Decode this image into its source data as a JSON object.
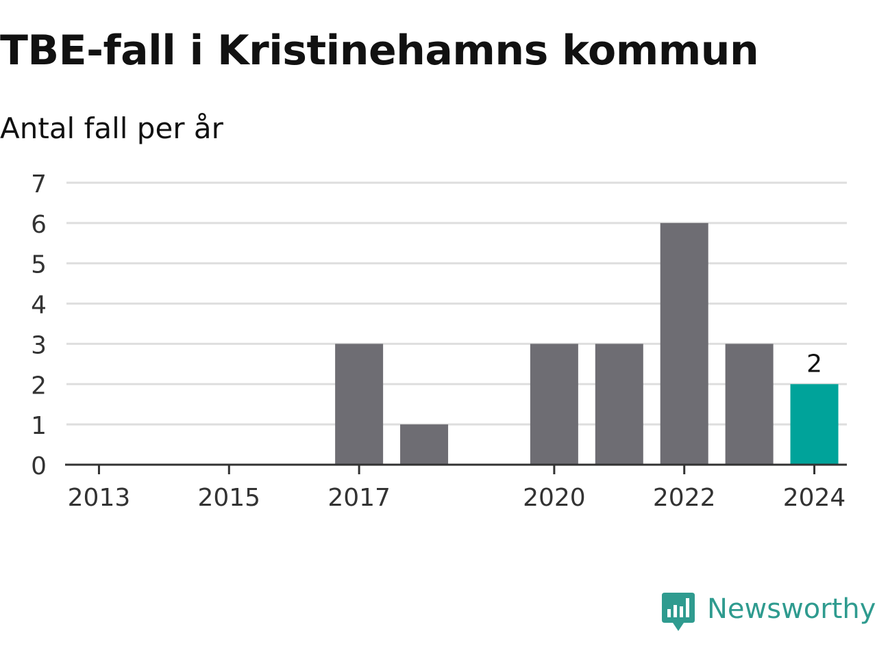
{
  "chart_data": {
    "type": "bar",
    "title": "TBE-fall i Kristinehamns kommun",
    "subtitle": "Antal fall per år",
    "xlabel": "",
    "ylabel": "",
    "categories": [
      "2013",
      "2014",
      "2015",
      "2016",
      "2017",
      "2018",
      "2019",
      "2020",
      "2021",
      "2022",
      "2023",
      "2024"
    ],
    "values": [
      0,
      0,
      0,
      0,
      3,
      1,
      0,
      3,
      3,
      6,
      3,
      2
    ],
    "x_tick_labels": [
      "2013",
      "2015",
      "2017",
      "2020",
      "2022",
      "2024"
    ],
    "y_ticks": [
      "0",
      "1",
      "2",
      "3",
      "4",
      "5",
      "6",
      "7"
    ],
    "ylim": [
      0,
      7
    ],
    "grid": true,
    "highlight": {
      "category": "2024",
      "label": "2",
      "color": "#00a39a"
    },
    "bar_color": "#6e6d73"
  },
  "brand": {
    "name": "Newsworthy",
    "color": "#2f9b8f",
    "icon": "newsworthy-logo-icon"
  }
}
